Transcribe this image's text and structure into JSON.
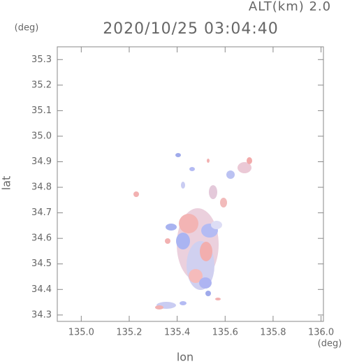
{
  "chart_data": {
    "type": "map",
    "title": "2020/10/25 03:04:40",
    "subtitle": "ALT(km) 2.0",
    "x_label": "lon",
    "y_label": "lat",
    "x_unit": "(deg)",
    "y_unit": "(deg)",
    "xlim": [
      134.9,
      136.01
    ],
    "ylim": [
      34.275,
      35.35
    ],
    "xticks": [
      {
        "value": 135.0,
        "label": "135.0"
      },
      135.2,
      135.4,
      135.6,
      135.8,
      {
        "value": 136.0,
        "label": "136.0"
      }
    ],
    "yticks": [
      34.3,
      34.4,
      34.5,
      34.6,
      34.7,
      34.8,
      34.9,
      {
        "value": 35.0,
        "label": "35.0"
      },
      35.1,
      35.2,
      35.3
    ]
  }
}
